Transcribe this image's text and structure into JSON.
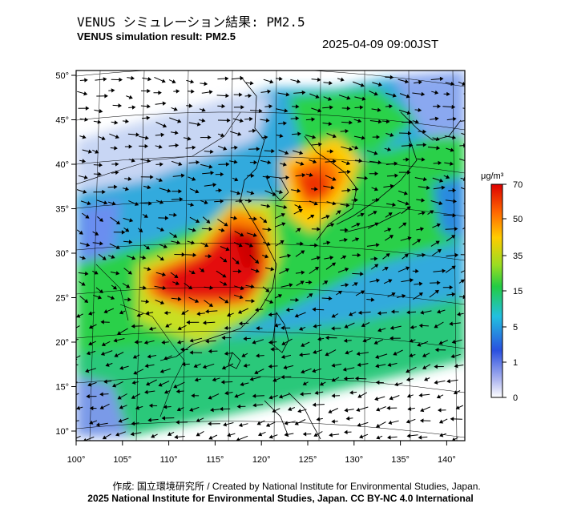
{
  "header": {
    "title_ja": "VENUS シミュレーション結果: PM2.5",
    "title_en": "VENUS simulation result: PM2.5",
    "timestamp": "2025-04-09 09:00JST"
  },
  "map": {
    "lon_ticks": [
      "100°",
      "105°",
      "110°",
      "115°",
      "120°",
      "125°",
      "130°",
      "135°",
      "140°"
    ],
    "lat_ticks": [
      "50°",
      "45°",
      "40°",
      "35°",
      "30°",
      "25°",
      "20°",
      "15°",
      "10°"
    ]
  },
  "colorbar": {
    "unit": "μg/m³",
    "labels": [
      "70",
      "50",
      "35",
      "15",
      "5",
      "1",
      "0"
    ],
    "colors": [
      "#cc0000",
      "#ff3300",
      "#ff9900",
      "#ffcc00",
      "#33cc33",
      "#00cccc",
      "#3399ff",
      "#0033cc",
      "#ffffff"
    ]
  },
  "footer": {
    "credit_line": "作成: 国立環境研究所 / Created by National Institute for Environmental Studies, Japan.",
    "license_line": "2025 National Institute for Environmental Studies, Japan. CC BY-NC 4.0 International"
  }
}
